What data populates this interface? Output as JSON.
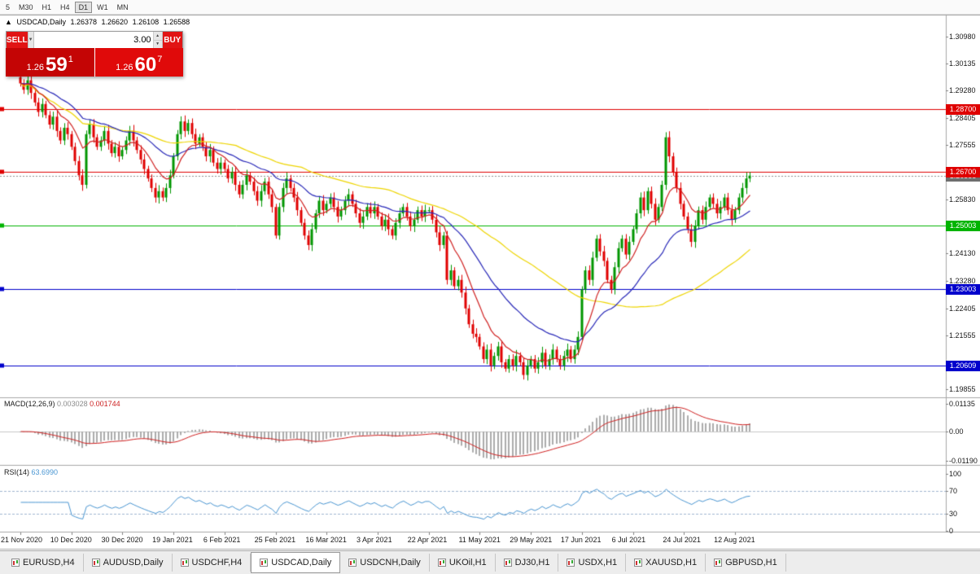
{
  "toolbar": {
    "timeframes": [
      {
        "label": "5",
        "active": false
      },
      {
        "label": "M30",
        "active": false
      },
      {
        "label": "H1",
        "active": false
      },
      {
        "label": "H4",
        "active": false
      },
      {
        "label": "D1",
        "active": true
      },
      {
        "label": "W1",
        "active": false
      },
      {
        "label": "MN",
        "active": false
      }
    ]
  },
  "chart_header": {
    "collapse_icon": "▲",
    "symbol": "USDCAD,Daily",
    "open": "1.26378",
    "high": "1.26620",
    "low": "1.26108",
    "close": "1.26588"
  },
  "trade_panel": {
    "sell_label": "SELL",
    "buy_label": "BUY",
    "volume": "3.00",
    "dropdown_icon": "▼",
    "spin_up_icon": "▲",
    "spin_down_icon": "▼",
    "sell_price": {
      "prefix": "1.26",
      "big": "59",
      "sup": "1"
    },
    "buy_price": {
      "prefix": "1.26",
      "big": "60",
      "sup": "7"
    }
  },
  "price_axis": {
    "ticks": [
      "1.30980",
      "1.30135",
      "1.29280",
      "1.28405",
      "1.27555",
      "1.25830",
      "1.24130",
      "1.23280",
      "1.22405",
      "1.21555",
      "1.19855"
    ]
  },
  "macd_panel": {
    "label": "MACD(12,26,9)",
    "value_main": "0.003028",
    "value_signal": "0.001744",
    "ticks": [
      {
        "label": "0.01135",
        "value": 0.01135
      },
      {
        "label": "0.00",
        "value": 0
      },
      {
        "label": "-0.01190",
        "value": -0.0119
      }
    ]
  },
  "rsi_panel": {
    "label": "RSI(14)",
    "value": "63.6990",
    "ticks": [
      {
        "label": "100",
        "value": 100
      },
      {
        "label": "70",
        "value": 70
      },
      {
        "label": "30",
        "value": 30
      },
      {
        "label": "0",
        "value": 0
      }
    ]
  },
  "tabs": {
    "items": [
      {
        "label": "EURUSD,H4",
        "active": false
      },
      {
        "label": "AUDUSD,Daily",
        "active": false
      },
      {
        "label": "USDCHF,H4",
        "active": false
      },
      {
        "label": "USDCAD,Daily",
        "active": true
      },
      {
        "label": "USDCNH,Daily",
        "active": false
      },
      {
        "label": "UKOil,H1",
        "active": false
      },
      {
        "label": "DJ30,H1",
        "active": false
      },
      {
        "label": "USDX,H1",
        "active": false
      },
      {
        "label": "XAUUSD,H1",
        "active": false
      },
      {
        "label": "GBPUSD,H1",
        "active": false
      }
    ]
  },
  "chart_data": {
    "type": "candlestick",
    "symbol": "USDCAD",
    "timeframe": "Daily",
    "y_range": [
      1.1962,
      1.3167
    ],
    "x_tick_labels": [
      "21 Nov 2020",
      "10 Dec 2020",
      "30 Dec 2020",
      "19 Jan 2021",
      "6 Feb 2021",
      "25 Feb 2021",
      "16 Mar 2021",
      "3 Apr 2021",
      "22 Apr 2021",
      "11 May 2021",
      "29 May 2021",
      "17 Jun 2021",
      "6 Jul 2021",
      "24 Jul 2021",
      "12 Aug 2021"
    ],
    "closes": [
      1.295,
      1.293,
      1.296,
      1.292,
      1.289,
      1.286,
      1.2885,
      1.285,
      1.282,
      1.2845,
      1.28,
      1.277,
      1.281,
      1.279,
      1.275,
      1.2705,
      1.266,
      1.263,
      1.279,
      1.282,
      1.278,
      1.275,
      1.277,
      1.28,
      1.276,
      1.273,
      1.275,
      1.272,
      1.274,
      1.277,
      1.28,
      1.277,
      1.274,
      1.271,
      1.268,
      1.265,
      1.262,
      1.259,
      1.261,
      1.259,
      1.262,
      1.266,
      1.272,
      1.279,
      1.283,
      1.28,
      1.2825,
      1.279,
      1.276,
      1.278,
      1.275,
      1.272,
      1.274,
      1.27,
      1.268,
      1.27,
      1.268,
      1.265,
      1.267,
      1.263,
      1.26,
      1.263,
      1.266,
      1.264,
      1.261,
      1.258,
      1.261,
      1.264,
      1.26,
      1.256,
      1.247,
      1.256,
      1.262,
      1.265,
      1.262,
      1.259,
      1.255,
      1.251,
      1.247,
      1.244,
      1.249,
      1.254,
      1.258,
      1.255,
      1.257,
      1.259,
      1.256,
      1.253,
      1.255,
      1.258,
      1.26,
      1.257,
      1.254,
      1.251,
      1.253,
      1.256,
      1.254,
      1.256,
      1.253,
      1.25,
      1.252,
      1.249,
      1.247,
      1.251,
      1.254,
      1.256,
      1.253,
      1.25,
      1.252,
      1.255,
      1.253,
      1.255,
      1.255,
      1.252,
      1.248,
      1.244,
      1.247,
      1.233,
      1.236,
      1.231,
      1.233,
      1.229,
      1.224,
      1.219,
      1.216,
      1.215,
      1.212,
      1.208,
      1.211,
      1.206,
      1.209,
      1.212,
      1.207,
      1.205,
      1.208,
      1.206,
      1.209,
      1.207,
      1.203,
      1.206,
      1.208,
      1.205,
      1.207,
      1.21,
      1.206,
      1.208,
      1.211,
      1.208,
      1.206,
      1.209,
      1.211,
      1.208,
      1.211,
      1.215,
      1.23,
      1.236,
      1.233,
      1.24,
      1.246,
      1.242,
      1.239,
      1.233,
      1.23,
      1.237,
      1.243,
      1.246,
      1.241,
      1.245,
      1.249,
      1.254,
      1.259,
      1.255,
      1.261,
      1.257,
      1.252,
      1.256,
      1.263,
      1.278,
      1.272,
      1.267,
      1.262,
      1.257,
      1.253,
      1.249,
      1.245,
      1.25,
      1.255,
      1.252,
      1.256,
      1.259,
      1.257,
      1.254,
      1.256,
      1.259,
      1.255,
      1.252,
      1.255,
      1.259,
      1.262,
      1.265,
      1.2659
    ],
    "up_color": "#009600",
    "down_color": "#E00000",
    "levels": [
      {
        "value": 1.287,
        "label": "1.28700",
        "color": "#DF0000"
      },
      {
        "value": 1.267,
        "label": "1.26700",
        "color": "#DF0000"
      },
      {
        "value": 1.25003,
        "label": "1.25003",
        "color": "#00B400"
      },
      {
        "value": 1.23003,
        "label": "1.23003",
        "color": "#0000CC"
      },
      {
        "value": 1.20609,
        "label": "1.20609",
        "color": "#0000CC"
      }
    ],
    "current_price": {
      "value": 1.26588,
      "label": "1.26588",
      "color": "#6E6E6E"
    },
    "moving_averages": [
      {
        "name": "slow",
        "period": 60,
        "type": "sma",
        "color": "#EED500"
      },
      {
        "name": "medium",
        "period": 30,
        "type": "ema",
        "color": "#2828B8"
      },
      {
        "name": "fast",
        "period": 10,
        "type": "ema",
        "color": "#D02020"
      }
    ],
    "macd": {
      "fast": 12,
      "slow": 26,
      "signal": 9,
      "current": 0.003028,
      "current_signal": 0.001744,
      "hist_color": "#ABABAB",
      "signal_color": "#D02020"
    },
    "rsi": {
      "period": 14,
      "current": 63.699,
      "overbought": 70,
      "oversold": 30,
      "color": "#4A96D2"
    }
  }
}
